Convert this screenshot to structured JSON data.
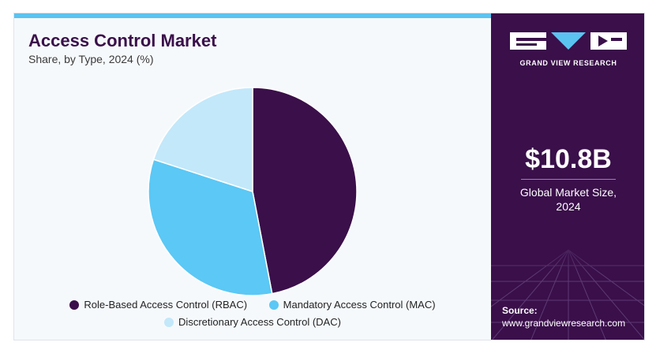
{
  "header": {
    "title": "Access Control Market",
    "subtitle": "Share, by Type, 2024 (%)"
  },
  "chart_data": {
    "type": "pie",
    "title": "Access Control Market",
    "subtitle": "Share, by Type, 2024 (%)",
    "categories": [
      "Role-Based Access Control (RBAC)",
      "Mandatory Access Control (MAC)",
      "Discretionary Access Control (DAC)"
    ],
    "values": [
      47,
      33,
      20
    ],
    "colors": [
      "#3a0f4a",
      "#5bc8f5",
      "#c2e8fa"
    ],
    "legend_position": "bottom"
  },
  "brand": {
    "name": "GRAND VIEW RESEARCH"
  },
  "highlight": {
    "value": "$10.8B",
    "label_line1": "Global Market Size,",
    "label_line2": "2024"
  },
  "source": {
    "label": "Source:",
    "url": "www.grandviewresearch.com"
  },
  "colors": {
    "sidebar": "#3a0f4a",
    "accent": "#5bc3f0"
  }
}
